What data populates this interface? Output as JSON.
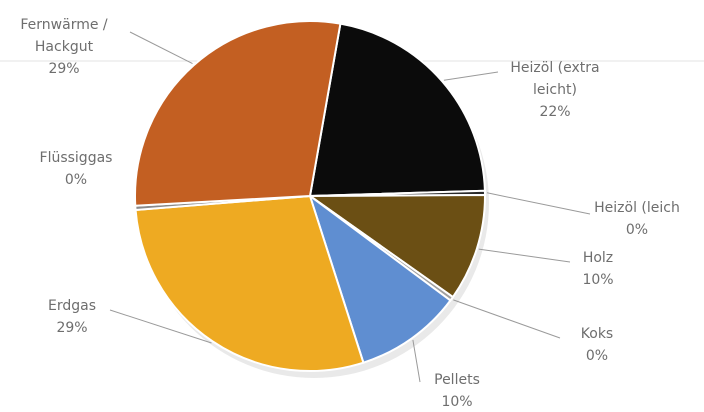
{
  "chart_data": {
    "type": "pie",
    "slices": [
      {
        "lines": [
          "Heizöl (extra",
          "leicht)"
        ],
        "pct_label": "22%",
        "value": 22,
        "color": "#0b0b0b"
      },
      {
        "lines": [
          "Heizöl (leich"
        ],
        "pct_label": "0%",
        "value": 0,
        "color": "#2a2a2a"
      },
      {
        "lines": [
          "Holz"
        ],
        "pct_label": "10%",
        "value": 10,
        "color": "#6b4f14"
      },
      {
        "lines": [
          "Koks"
        ],
        "pct_label": "0%",
        "value": 0,
        "color": "#a0a0a0"
      },
      {
        "lines": [
          "Pellets"
        ],
        "pct_label": "10%",
        "value": 10,
        "color": "#5f8ed1"
      },
      {
        "lines": [
          "Erdgas"
        ],
        "pct_label": "29%",
        "value": 29,
        "color": "#eeaa22"
      },
      {
        "lines": [
          "Flüssiggas"
        ],
        "pct_label": "0%",
        "value": 0,
        "color": "#8a8a8a"
      },
      {
        "lines": [
          "Fernwärme /",
          "Hackgut"
        ],
        "pct_label": "29%",
        "value": 29,
        "color": "#c35f22"
      }
    ]
  }
}
